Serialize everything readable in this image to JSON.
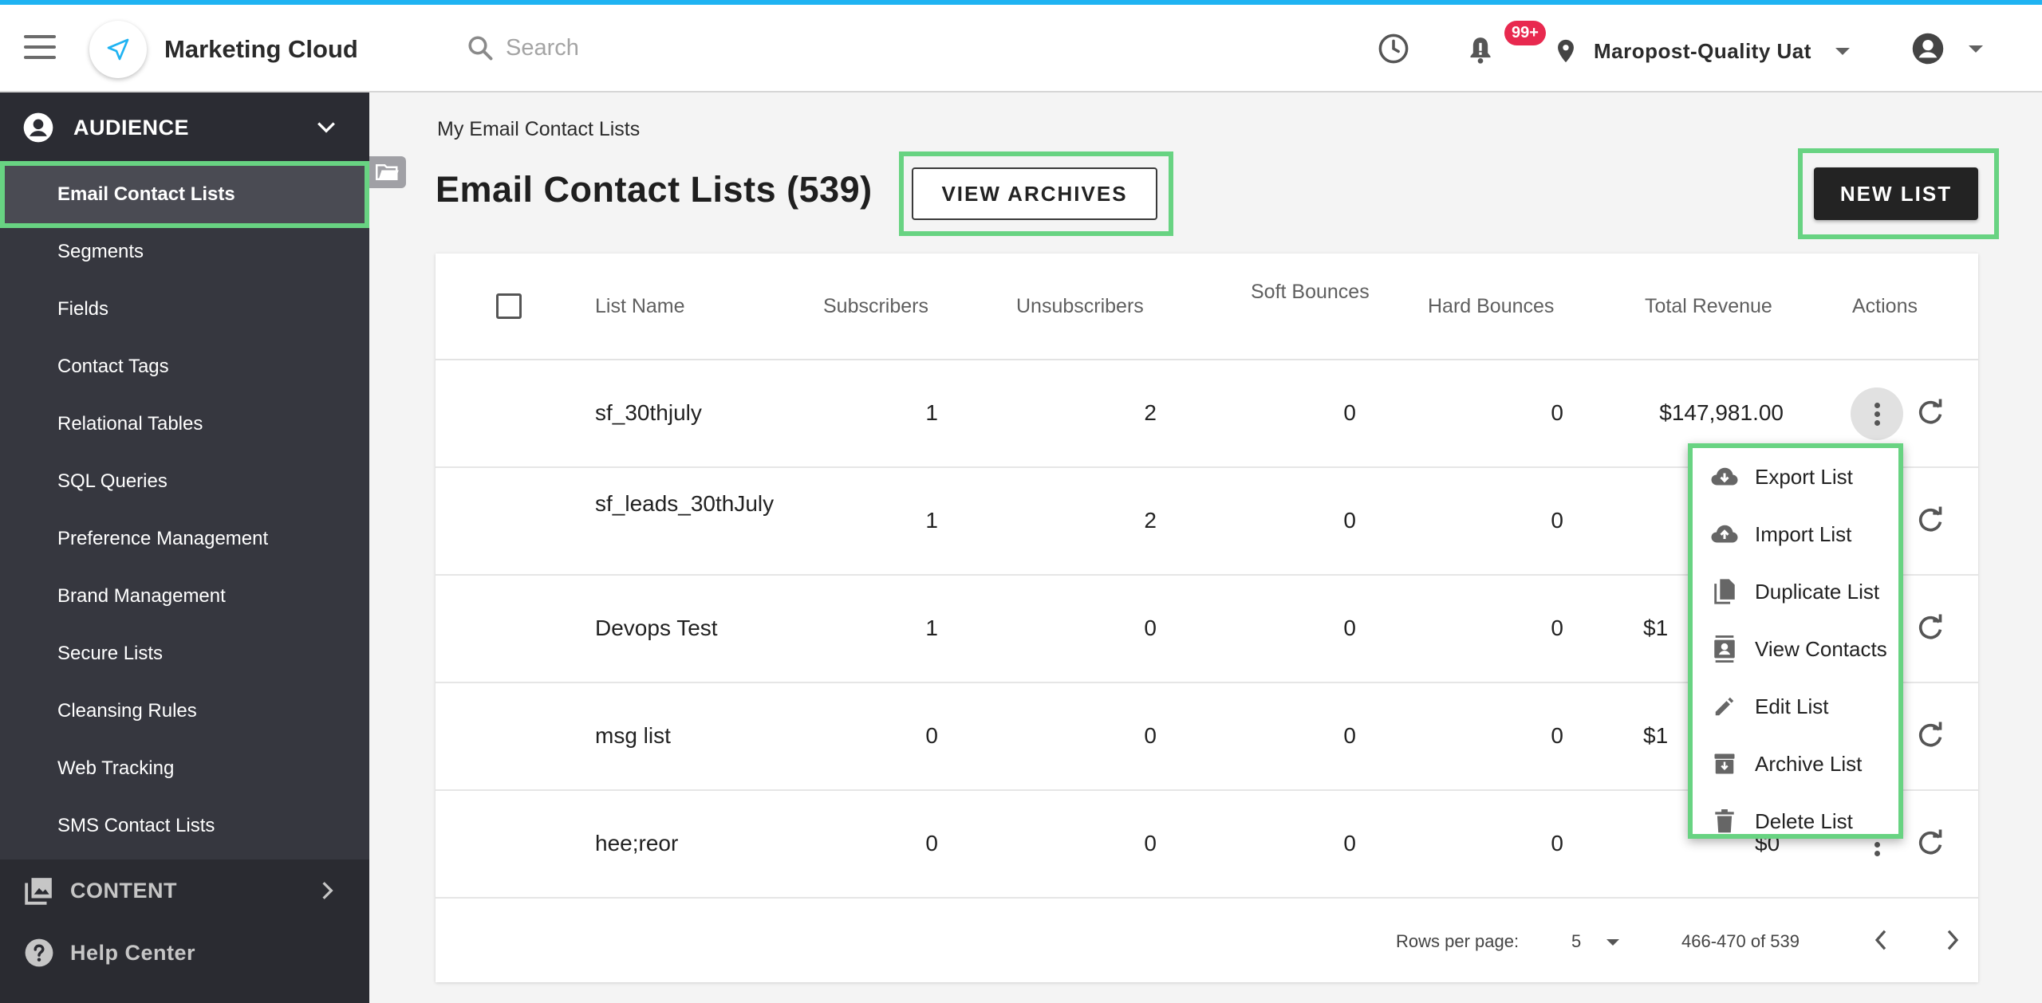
{
  "app": {
    "title": "Marketing Cloud"
  },
  "search": {
    "placeholder": "Search"
  },
  "notifications": {
    "badge": "99+"
  },
  "account": {
    "name": "Maropost-Quality Uat"
  },
  "colors": {
    "accent": "#1fb3f2",
    "highlight": "#68d382",
    "sidebar": "#36373f",
    "badge": "#e8294f"
  },
  "sidebar": {
    "section": "AUDIENCE",
    "items": [
      {
        "label": "Email Contact Lists",
        "active": true
      },
      {
        "label": "Segments"
      },
      {
        "label": "Fields"
      },
      {
        "label": "Contact Tags"
      },
      {
        "label": "Relational Tables"
      },
      {
        "label": "SQL Queries"
      },
      {
        "label": "Preference Management"
      },
      {
        "label": "Brand Management"
      },
      {
        "label": "Secure Lists"
      },
      {
        "label": "Cleansing Rules"
      },
      {
        "label": "Web Tracking"
      },
      {
        "label": "SMS Contact Lists"
      }
    ],
    "content": "CONTENT",
    "help": "Help Center"
  },
  "main": {
    "breadcrumb": "My Email Contact Lists",
    "title": "Email Contact Lists (539)",
    "view_archives": "VIEW ARCHIVES",
    "new_list": "NEW LIST"
  },
  "table": {
    "headers": {
      "name": "List Name",
      "subscribers": "Subscribers",
      "unsubscribers": "Unsubscribers",
      "soft": "Soft Bounces",
      "hard": "Hard Bounces",
      "revenue": "Total Revenue",
      "actions": "Actions"
    },
    "rows": [
      {
        "name": "sf_30thjuly",
        "subscribers": "1",
        "unsubscribers": "2",
        "soft": "0",
        "hard": "0",
        "revenue": "$147,981.00"
      },
      {
        "name": "sf_leads_30thJuly",
        "subscribers": "1",
        "unsubscribers": "2",
        "soft": "0",
        "hard": "0",
        "revenue": ""
      },
      {
        "name": "Devops Test",
        "subscribers": "1",
        "unsubscribers": "0",
        "soft": "0",
        "hard": "0",
        "revenue": "$1"
      },
      {
        "name": "msg list",
        "subscribers": "0",
        "unsubscribers": "0",
        "soft": "0",
        "hard": "0",
        "revenue": "$1"
      },
      {
        "name": "hee;reor",
        "subscribers": "0",
        "unsubscribers": "0",
        "soft": "0",
        "hard": "0",
        "revenue": "$0"
      }
    ],
    "footer": {
      "rows_label": "Rows per page:",
      "rows_value": "5",
      "range": "466-470 of 539"
    }
  },
  "menu": {
    "items": [
      {
        "label": "Export List",
        "icon": "cloud-download-icon"
      },
      {
        "label": "Import List",
        "icon": "cloud-upload-icon"
      },
      {
        "label": "Duplicate List",
        "icon": "file-copy-icon"
      },
      {
        "label": "View Contacts",
        "icon": "contacts-icon"
      },
      {
        "label": "Edit List",
        "icon": "pencil-icon"
      },
      {
        "label": "Archive List",
        "icon": "archive-icon"
      },
      {
        "label": "Delete List",
        "icon": "trash-icon"
      }
    ]
  }
}
